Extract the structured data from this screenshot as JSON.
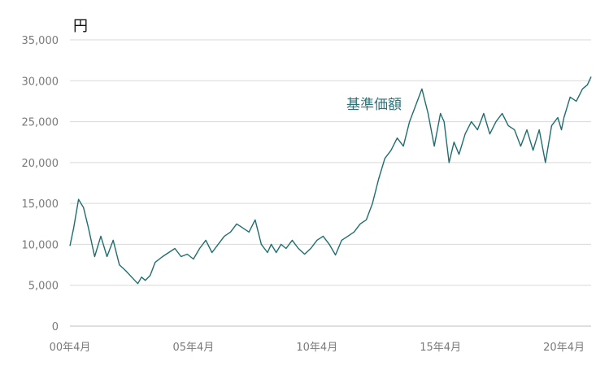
{
  "chart_data": {
    "type": "line",
    "unit_label": "円",
    "ylim": [
      0,
      35000
    ],
    "xlim": [
      2000.25,
      2021.35
    ],
    "grid": "horizontal",
    "y_ticks": [
      {
        "value": 0,
        "label": "0"
      },
      {
        "value": 5000,
        "label": "5,000"
      },
      {
        "value": 10000,
        "label": "10,000"
      },
      {
        "value": 15000,
        "label": "15,000"
      },
      {
        "value": 20000,
        "label": "20,000"
      },
      {
        "value": 25000,
        "label": "25,000"
      },
      {
        "value": 30000,
        "label": "30,000"
      },
      {
        "value": 35000,
        "label": "35,000"
      }
    ],
    "x_ticks": [
      {
        "value": 2000.25,
        "label": "00年4月"
      },
      {
        "value": 2005.25,
        "label": "05年4月"
      },
      {
        "value": 2010.25,
        "label": "10年4月"
      },
      {
        "value": 2015.25,
        "label": "15年4月"
      },
      {
        "value": 2020.25,
        "label": "20年4月"
      }
    ],
    "series": [
      {
        "name": "基準価額",
        "color": "#1f6e6f",
        "label_color": "#2a7378",
        "x": [
          2000.25,
          2000.4,
          2000.6,
          2000.8,
          2001.0,
          2001.25,
          2001.5,
          2001.75,
          2002.0,
          2002.25,
          2002.5,
          2002.75,
          2003.0,
          2003.15,
          2003.3,
          2003.5,
          2003.7,
          2004.0,
          2004.25,
          2004.5,
          2004.75,
          2005.0,
          2005.25,
          2005.5,
          2005.75,
          2006.0,
          2006.25,
          2006.5,
          2006.75,
          2007.0,
          2007.25,
          2007.5,
          2007.75,
          2008.0,
          2008.25,
          2008.4,
          2008.6,
          2008.8,
          2009.0,
          2009.25,
          2009.5,
          2009.75,
          2010.0,
          2010.25,
          2010.5,
          2010.75,
          2011.0,
          2011.25,
          2011.5,
          2011.75,
          2012.0,
          2012.25,
          2012.5,
          2012.75,
          2013.0,
          2013.25,
          2013.5,
          2013.75,
          2014.0,
          2014.25,
          2014.5,
          2014.75,
          2015.0,
          2015.25,
          2015.4,
          2015.6,
          2015.8,
          2016.0,
          2016.25,
          2016.5,
          2016.75,
          2017.0,
          2017.25,
          2017.5,
          2017.75,
          2018.0,
          2018.25,
          2018.5,
          2018.75,
          2019.0,
          2019.25,
          2019.5,
          2019.75,
          2020.0,
          2020.15,
          2020.25,
          2020.5,
          2020.75,
          2021.0,
          2021.2,
          2021.35
        ],
        "values": [
          9800,
          12000,
          15500,
          14500,
          12000,
          8500,
          11000,
          8500,
          10500,
          7500,
          6800,
          6000,
          5200,
          6000,
          5600,
          6200,
          7800,
          8500,
          9000,
          9500,
          8500,
          8800,
          8200,
          9500,
          10500,
          9000,
          10000,
          11000,
          11500,
          12500,
          12000,
          11500,
          13000,
          10000,
          9000,
          10000,
          9000,
          10000,
          9500,
          10500,
          9500,
          8800,
          9500,
          10500,
          11000,
          10000,
          8700,
          10500,
          11000,
          11500,
          12500,
          13000,
          15000,
          18000,
          20500,
          21500,
          23000,
          22000,
          25000,
          27000,
          29000,
          26000,
          22000,
          26000,
          25000,
          20000,
          22500,
          21000,
          23500,
          25000,
          24000,
          26000,
          23500,
          25000,
          26000,
          24500,
          24000,
          22000,
          24000,
          21500,
          24000,
          20000,
          24500,
          25500,
          24000,
          25500,
          28000,
          27500,
          29000,
          29500,
          30500
        ]
      }
    ]
  }
}
